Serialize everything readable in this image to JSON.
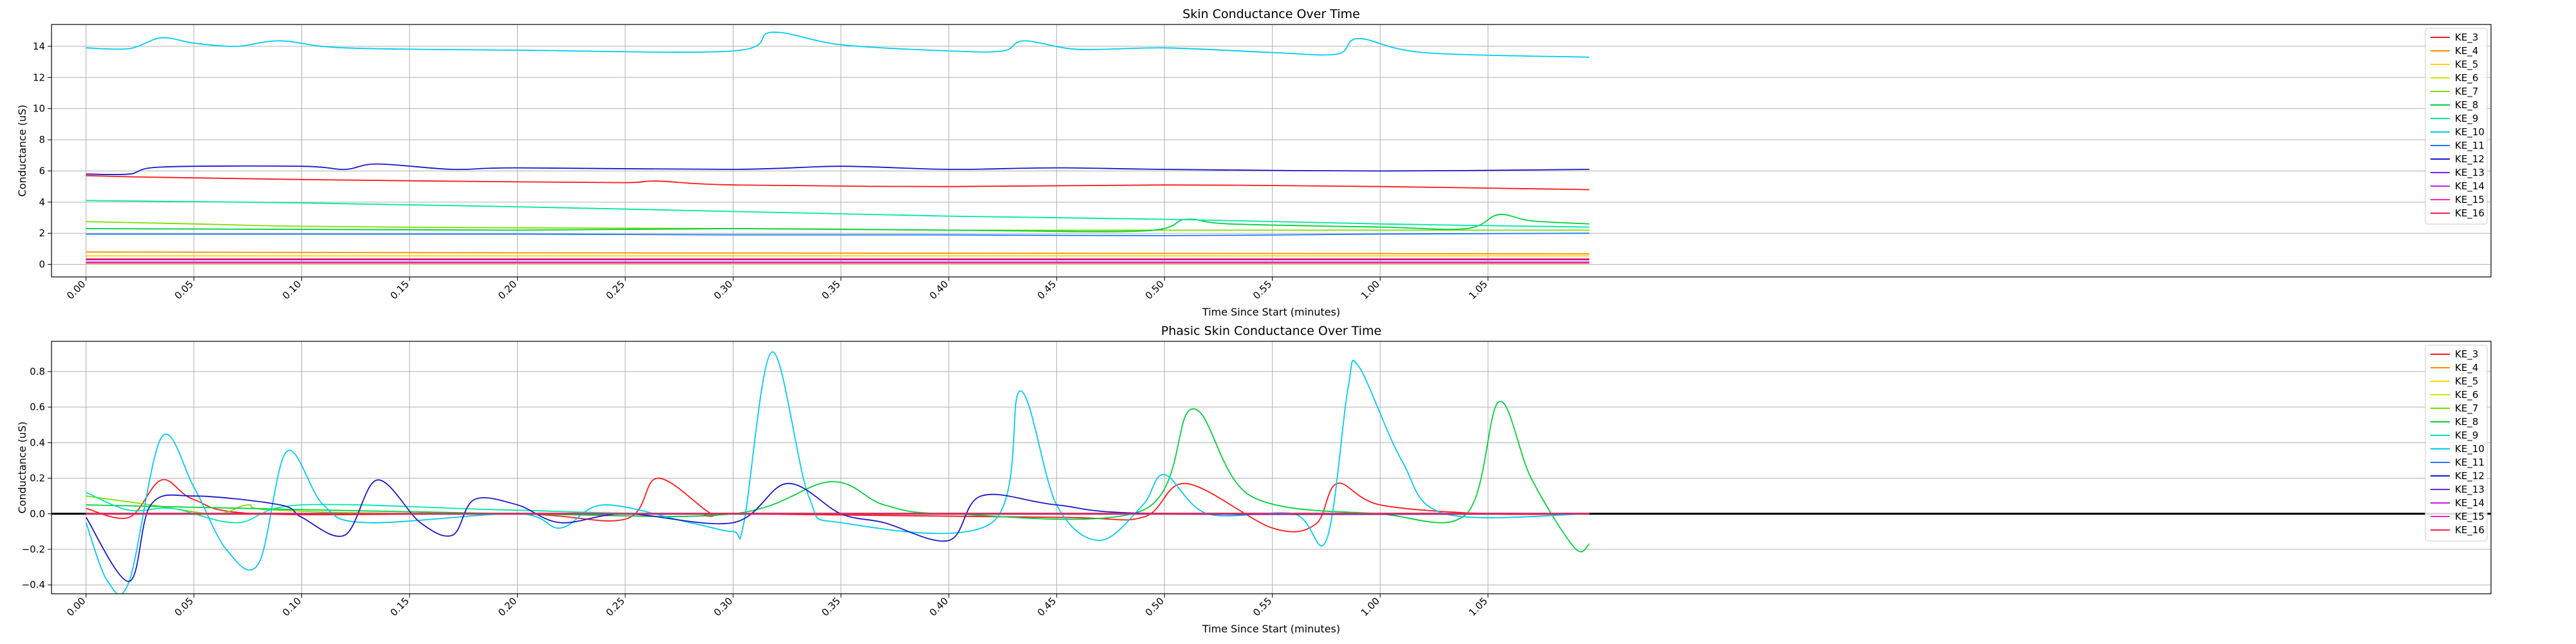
{
  "chart_data": [
    {
      "type": "line",
      "title": "Skin Conductance Over Time",
      "xlabel": "Time Since Start (minutes)",
      "ylabel": "Conductance (uS)",
      "xlim": [
        -0.016,
        1.115
      ],
      "ylim": [
        -0.8,
        15.4
      ],
      "xticks": [
        "0.00",
        "0.05",
        "0.10",
        "0.15",
        "0.20",
        "0.25",
        "0.30",
        "0.35",
        "0.40",
        "0.45",
        "0.50",
        "0.55",
        "1.00",
        "1.05"
      ],
      "yticks": [
        0,
        2,
        4,
        6,
        8,
        10,
        12,
        14
      ],
      "grid": true,
      "legend_position": "top-right",
      "series": [
        {
          "name": "KE_3",
          "color": "#ff1a1a",
          "values": [
            [
              0.0,
              5.7
            ],
            [
              0.03,
              5.6
            ],
            [
              0.1,
              5.45
            ],
            [
              0.2,
              5.3
            ],
            [
              0.25,
              5.25
            ],
            [
              0.265,
              5.35
            ],
            [
              0.3,
              5.1
            ],
            [
              0.4,
              5.0
            ],
            [
              0.5,
              5.1
            ],
            [
              0.6,
              5.0
            ],
            [
              0.65,
              4.9
            ],
            [
              0.697,
              4.8
            ]
          ]
        },
        {
          "name": "KE_4",
          "color": "#ff8c00",
          "values": [
            [
              0.0,
              0.8
            ],
            [
              0.2,
              0.75
            ],
            [
              0.4,
              0.72
            ],
            [
              0.6,
              0.7
            ],
            [
              0.697,
              0.68
            ]
          ]
        },
        {
          "name": "KE_5",
          "color": "#ffd500",
          "values": [
            [
              0.0,
              0.55
            ],
            [
              0.3,
              0.55
            ],
            [
              0.697,
              0.55
            ]
          ]
        },
        {
          "name": "KE_6",
          "color": "#c8f000",
          "values": [
            [
              0.0,
              0.05
            ],
            [
              0.697,
              0.05
            ]
          ]
        },
        {
          "name": "KE_7",
          "color": "#7ae000",
          "values": [
            [
              0.0,
              2.75
            ],
            [
              0.05,
              2.6
            ],
            [
              0.1,
              2.45
            ],
            [
              0.2,
              2.35
            ],
            [
              0.3,
              2.3
            ],
            [
              0.4,
              2.2
            ],
            [
              0.5,
              2.2
            ],
            [
              0.6,
              2.2
            ],
            [
              0.697,
              2.2
            ]
          ]
        },
        {
          "name": "KE_8",
          "color": "#00d23c",
          "values": [
            [
              0.0,
              2.3
            ],
            [
              0.1,
              2.25
            ],
            [
              0.2,
              2.2
            ],
            [
              0.3,
              2.3
            ],
            [
              0.4,
              2.2
            ],
            [
              0.49,
              2.15
            ],
            [
              0.51,
              2.9
            ],
            [
              0.53,
              2.6
            ],
            [
              0.6,
              2.4
            ],
            [
              0.64,
              2.3
            ],
            [
              0.655,
              3.2
            ],
            [
              0.67,
              2.8
            ],
            [
              0.697,
              2.6
            ]
          ]
        },
        {
          "name": "KE_9",
          "color": "#00e6a8",
          "values": [
            [
              0.0,
              4.1
            ],
            [
              0.1,
              3.95
            ],
            [
              0.2,
              3.7
            ],
            [
              0.3,
              3.4
            ],
            [
              0.4,
              3.1
            ],
            [
              0.5,
              2.9
            ],
            [
              0.6,
              2.6
            ],
            [
              0.697,
              2.4
            ]
          ]
        },
        {
          "name": "KE_10",
          "color": "#00ccf0",
          "values": [
            [
              0.0,
              13.9
            ],
            [
              0.02,
              13.85
            ],
            [
              0.035,
              14.55
            ],
            [
              0.05,
              14.2
            ],
            [
              0.07,
              14.0
            ],
            [
              0.09,
              14.35
            ],
            [
              0.12,
              13.9
            ],
            [
              0.2,
              13.75
            ],
            [
              0.3,
              13.7
            ],
            [
              0.318,
              14.9
            ],
            [
              0.35,
              14.1
            ],
            [
              0.4,
              13.7
            ],
            [
              0.425,
              13.7
            ],
            [
              0.435,
              14.35
            ],
            [
              0.46,
              13.8
            ],
            [
              0.5,
              13.9
            ],
            [
              0.55,
              13.6
            ],
            [
              0.58,
              13.5
            ],
            [
              0.59,
              14.5
            ],
            [
              0.62,
              13.6
            ],
            [
              0.697,
              13.3
            ]
          ]
        },
        {
          "name": "KE_11",
          "color": "#1e78ff",
          "values": [
            [
              0.0,
              1.95
            ],
            [
              0.1,
              1.95
            ],
            [
              0.2,
              1.95
            ],
            [
              0.3,
              1.9
            ],
            [
              0.4,
              1.9
            ],
            [
              0.5,
              1.85
            ],
            [
              0.6,
              1.95
            ],
            [
              0.697,
              2.0
            ]
          ]
        },
        {
          "name": "KE_12",
          "color": "#1a1acc",
          "values": [
            [
              0.0,
              5.8
            ],
            [
              0.02,
              5.8
            ],
            [
              0.035,
              6.25
            ],
            [
              0.1,
              6.3
            ],
            [
              0.12,
              6.1
            ],
            [
              0.135,
              6.45
            ],
            [
              0.17,
              6.1
            ],
            [
              0.2,
              6.2
            ],
            [
              0.3,
              6.1
            ],
            [
              0.35,
              6.3
            ],
            [
              0.4,
              6.1
            ],
            [
              0.45,
              6.2
            ],
            [
              0.5,
              6.1
            ],
            [
              0.6,
              6.0
            ],
            [
              0.697,
              6.1
            ]
          ]
        },
        {
          "name": "KE_13",
          "color": "#7a20e6",
          "values": [
            [
              0.0,
              0.3
            ],
            [
              0.697,
              0.3
            ]
          ]
        },
        {
          "name": "KE_14",
          "color": "#c020e6",
          "values": [
            [
              0.0,
              0.15
            ],
            [
              0.697,
              0.15
            ]
          ]
        },
        {
          "name": "KE_15",
          "color": "#ff20c8",
          "values": [
            [
              0.0,
              0.1
            ],
            [
              0.697,
              0.1
            ]
          ]
        },
        {
          "name": "KE_16",
          "color": "#ff1a50",
          "values": [
            [
              0.0,
              0.35
            ],
            [
              0.697,
              0.35
            ]
          ]
        }
      ]
    },
    {
      "type": "line",
      "title": "Phasic Skin Conductance Over Time",
      "xlabel": "Time Since Start (minutes)",
      "ylabel": "Conductance (uS)",
      "xlim": [
        -0.016,
        1.115
      ],
      "ylim": [
        -0.45,
        0.97
      ],
      "xticks": [
        "0.00",
        "0.05",
        "0.10",
        "0.15",
        "0.20",
        "0.25",
        "0.30",
        "0.35",
        "0.40",
        "0.45",
        "0.50",
        "0.55",
        "1.00",
        "1.05"
      ],
      "yticks": [
        -0.4,
        -0.2,
        0.0,
        0.2,
        0.4,
        0.6,
        0.8
      ],
      "grid": true,
      "zero_line": true,
      "legend_position": "top-right",
      "series": [
        {
          "name": "KE_3",
          "color": "#ff1a1a",
          "values": [
            [
              0.0,
              0.03
            ],
            [
              0.02,
              -0.02
            ],
            [
              0.035,
              0.19
            ],
            [
              0.05,
              0.08
            ],
            [
              0.08,
              0.0
            ],
            [
              0.2,
              0.0
            ],
            [
              0.25,
              -0.03
            ],
            [
              0.265,
              0.2
            ],
            [
              0.29,
              0.0
            ],
            [
              0.3,
              0.0
            ],
            [
              0.45,
              -0.02
            ],
            [
              0.49,
              -0.02
            ],
            [
              0.51,
              0.17
            ],
            [
              0.55,
              -0.08
            ],
            [
              0.57,
              -0.06
            ],
            [
              0.58,
              0.17
            ],
            [
              0.6,
              0.05
            ],
            [
              0.65,
              0.0
            ],
            [
              0.697,
              0.0
            ]
          ]
        },
        {
          "name": "KE_4",
          "color": "#ff8c00",
          "values": [
            [
              0.0,
              0.0
            ],
            [
              0.697,
              0.0
            ]
          ]
        },
        {
          "name": "KE_5",
          "color": "#ffd500",
          "values": [
            [
              0.0,
              0.0
            ],
            [
              0.697,
              0.0
            ]
          ]
        },
        {
          "name": "KE_6",
          "color": "#c8f000",
          "values": [
            [
              0.0,
              0.0
            ],
            [
              0.697,
              0.0
            ]
          ]
        },
        {
          "name": "KE_7",
          "color": "#7ae000",
          "values": [
            [
              0.0,
              0.1
            ],
            [
              0.03,
              0.05
            ],
            [
              0.06,
              0.0
            ],
            [
              0.075,
              0.05
            ],
            [
              0.09,
              0.02
            ],
            [
              0.2,
              0.0
            ],
            [
              0.697,
              0.0
            ]
          ]
        },
        {
          "name": "KE_8",
          "color": "#00d23c",
          "values": [
            [
              0.0,
              0.05
            ],
            [
              0.2,
              0.0
            ],
            [
              0.3,
              0.0
            ],
            [
              0.345,
              0.18
            ],
            [
              0.37,
              0.05
            ],
            [
              0.4,
              0.0
            ],
            [
              0.49,
              0.02
            ],
            [
              0.513,
              0.59
            ],
            [
              0.54,
              0.1
            ],
            [
              0.6,
              0.0
            ],
            [
              0.64,
              0.0
            ],
            [
              0.655,
              0.63
            ],
            [
              0.67,
              0.2
            ],
            [
              0.69,
              -0.19
            ],
            [
              0.697,
              -0.17
            ]
          ]
        },
        {
          "name": "KE_9",
          "color": "#00e6a8",
          "values": [
            [
              0.0,
              0.12
            ],
            [
              0.02,
              0.02
            ],
            [
              0.04,
              0.03
            ],
            [
              0.07,
              -0.05
            ],
            [
              0.1,
              0.05
            ],
            [
              0.2,
              0.02
            ],
            [
              0.3,
              0.0
            ],
            [
              0.697,
              0.0
            ]
          ]
        },
        {
          "name": "KE_10",
          "color": "#00ccf0",
          "values": [
            [
              0.0,
              -0.05
            ],
            [
              0.01,
              -0.38
            ],
            [
              0.02,
              -0.38
            ],
            [
              0.035,
              0.43
            ],
            [
              0.05,
              0.15
            ],
            [
              0.065,
              -0.2
            ],
            [
              0.08,
              -0.28
            ],
            [
              0.093,
              0.35
            ],
            [
              0.11,
              0.05
            ],
            [
              0.13,
              -0.05
            ],
            [
              0.2,
              0.0
            ],
            [
              0.22,
              -0.08
            ],
            [
              0.24,
              0.05
            ],
            [
              0.28,
              -0.05
            ],
            [
              0.3,
              -0.1
            ],
            [
              0.305,
              -0.05
            ],
            [
              0.318,
              0.91
            ],
            [
              0.335,
              0.1
            ],
            [
              0.35,
              -0.05
            ],
            [
              0.42,
              -0.05
            ],
            [
              0.433,
              0.69
            ],
            [
              0.45,
              0.05
            ],
            [
              0.47,
              -0.15
            ],
            [
              0.49,
              0.05
            ],
            [
              0.5,
              0.22
            ],
            [
              0.52,
              0.0
            ],
            [
              0.56,
              0.0
            ],
            [
              0.575,
              -0.15
            ],
            [
              0.585,
              0.7
            ],
            [
              0.59,
              0.83
            ],
            [
              0.61,
              0.3
            ],
            [
              0.63,
              0.0
            ],
            [
              0.697,
              0.0
            ]
          ]
        },
        {
          "name": "KE_11",
          "color": "#1e78ff",
          "values": [
            [
              0.0,
              0.0
            ],
            [
              0.697,
              0.0
            ]
          ]
        },
        {
          "name": "KE_12",
          "color": "#1a1acc",
          "values": [
            [
              0.0,
              -0.02
            ],
            [
              0.02,
              -0.38
            ],
            [
              0.03,
              0.05
            ],
            [
              0.05,
              0.1
            ],
            [
              0.09,
              0.05
            ],
            [
              0.1,
              -0.02
            ],
            [
              0.12,
              -0.12
            ],
            [
              0.135,
              0.19
            ],
            [
              0.155,
              -0.05
            ],
            [
              0.17,
              -0.12
            ],
            [
              0.18,
              0.08
            ],
            [
              0.2,
              0.05
            ],
            [
              0.22,
              -0.05
            ],
            [
              0.25,
              0.0
            ],
            [
              0.3,
              -0.05
            ],
            [
              0.325,
              0.17
            ],
            [
              0.35,
              0.0
            ],
            [
              0.37,
              -0.05
            ],
            [
              0.4,
              -0.15
            ],
            [
              0.415,
              0.1
            ],
            [
              0.45,
              0.05
            ],
            [
              0.5,
              0.0
            ],
            [
              0.697,
              0.0
            ]
          ]
        },
        {
          "name": "KE_13",
          "color": "#7a20e6",
          "values": [
            [
              0.0,
              0.0
            ],
            [
              0.697,
              0.0
            ]
          ]
        },
        {
          "name": "KE_14",
          "color": "#c020e6",
          "values": [
            [
              0.0,
              0.0
            ],
            [
              0.697,
              0.0
            ]
          ]
        },
        {
          "name": "KE_15",
          "color": "#ff20c8",
          "values": [
            [
              0.0,
              0.0
            ],
            [
              0.697,
              0.0
            ]
          ]
        },
        {
          "name": "KE_16",
          "color": "#ff1a50",
          "values": [
            [
              0.0,
              0.0
            ],
            [
              0.697,
              0.0
            ]
          ]
        }
      ]
    }
  ]
}
